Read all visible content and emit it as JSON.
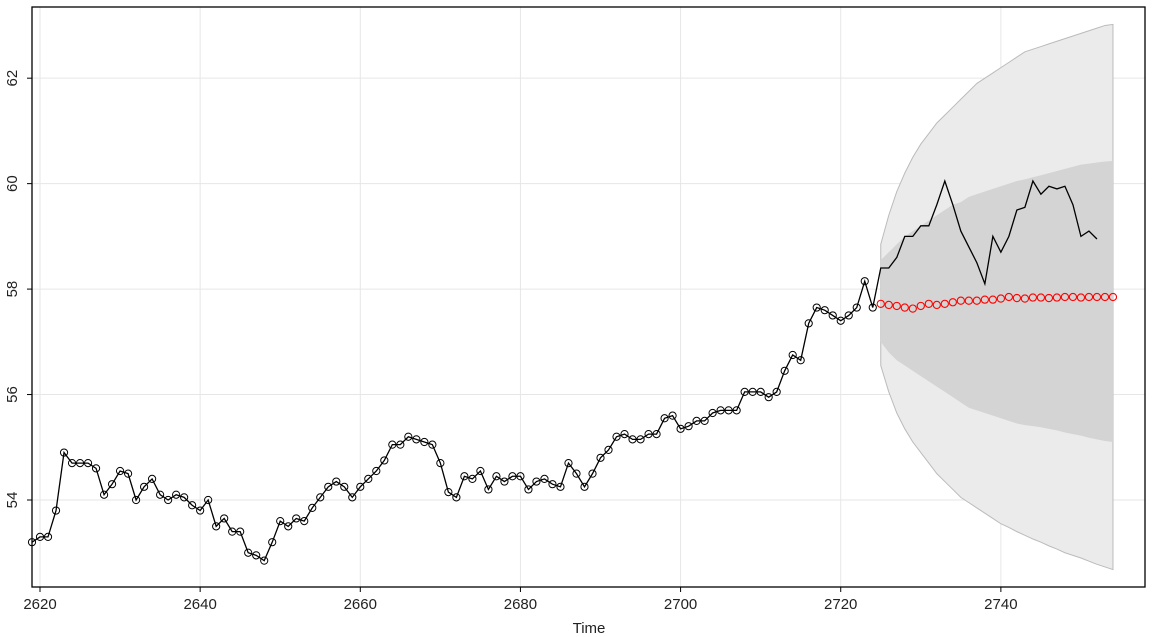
{
  "chart_data": {
    "type": "line",
    "title": "",
    "xlabel": "Time",
    "ylabel": "",
    "xlim": [
      2619,
      2758
    ],
    "ylim": [
      52.35,
      63.35
    ],
    "grid": true,
    "x_ticks": [
      2620,
      2640,
      2660,
      2680,
      2700,
      2720,
      2740
    ],
    "y_ticks": [
      54,
      56,
      58,
      60,
      62
    ],
    "colors": {
      "observed": "#000000",
      "forecast_points": "#ff0000",
      "band_80": "#d4d4d4",
      "band_95": "#ebebeb",
      "band_edge": "#bbbbbb",
      "grid": "#e6e6e6"
    },
    "observed": {
      "x_start": 2619,
      "values": [
        53.2,
        53.3,
        53.3,
        53.8,
        54.9,
        54.7,
        54.7,
        54.7,
        54.6,
        54.1,
        54.3,
        54.55,
        54.5,
        54.0,
        54.25,
        54.4,
        54.1,
        54.0,
        54.1,
        54.05,
        53.9,
        53.8,
        54.0,
        53.5,
        53.65,
        53.4,
        53.4,
        53.0,
        52.95,
        52.85,
        53.2,
        53.6,
        53.5,
        53.65,
        53.6,
        53.85,
        54.05,
        54.25,
        54.35,
        54.25,
        54.05,
        54.25,
        54.4,
        54.55,
        54.75,
        55.05,
        55.05,
        55.2,
        55.15,
        55.1,
        55.05,
        54.7,
        54.15,
        54.05,
        54.45,
        54.4,
        54.55,
        54.2,
        54.45,
        54.35,
        54.45,
        54.45,
        54.2,
        54.35,
        54.4,
        54.3,
        54.25,
        54.7,
        54.5,
        54.25,
        54.5,
        54.8,
        54.95,
        55.2,
        55.25,
        55.15,
        55.15,
        55.25,
        55.25,
        55.55,
        55.6,
        55.35,
        55.4,
        55.5,
        55.5,
        55.65,
        55.7,
        55.7,
        55.7,
        56.05,
        56.05,
        56.05,
        55.95,
        56.05,
        56.45,
        56.75,
        56.65,
        57.35,
        57.65,
        57.6,
        57.5,
        57.4,
        57.5,
        57.65,
        58.15,
        57.65
      ]
    },
    "actual_future": {
      "x_start": 2724,
      "values": [
        57.65,
        58.4,
        58.4,
        58.6,
        59.0,
        59.0,
        59.2,
        59.2,
        59.6,
        60.05,
        59.6,
        59.1,
        58.8,
        58.5,
        58.1,
        59.0,
        58.7,
        59.0,
        59.5,
        59.55,
        60.05,
        59.8,
        59.95,
        59.9,
        59.95,
        59.6,
        59.0,
        59.1,
        58.95
      ]
    },
    "forecast": {
      "x_start": 2725,
      "values": [
        57.72,
        57.7,
        57.68,
        57.65,
        57.63,
        57.68,
        57.72,
        57.7,
        57.72,
        57.75,
        57.78,
        57.78,
        57.78,
        57.8,
        57.8,
        57.82,
        57.85,
        57.83,
        57.82,
        57.84,
        57.84,
        57.83,
        57.84,
        57.85,
        57.85,
        57.84,
        57.85,
        57.85,
        57.85,
        57.85
      ]
    },
    "interval_80": {
      "lower": [
        57.0,
        56.8,
        56.65,
        56.55,
        56.45,
        56.35,
        56.25,
        56.15,
        56.05,
        55.95,
        55.85,
        55.75,
        55.7,
        55.65,
        55.6,
        55.55,
        55.5,
        55.45,
        55.42,
        55.4,
        55.38,
        55.35,
        55.32,
        55.28,
        55.25,
        55.22,
        55.18,
        55.15,
        55.12,
        55.1
      ],
      "upper": [
        58.55,
        58.7,
        58.85,
        59.0,
        59.1,
        59.2,
        59.3,
        59.4,
        59.5,
        59.6,
        59.65,
        59.75,
        59.8,
        59.85,
        59.9,
        59.95,
        60.0,
        60.05,
        60.08,
        60.12,
        60.16,
        60.2,
        60.24,
        60.28,
        60.32,
        60.36,
        60.38,
        60.4,
        60.42,
        60.43
      ]
    },
    "interval_95": {
      "lower": [
        56.55,
        56.05,
        55.65,
        55.35,
        55.1,
        54.9,
        54.7,
        54.5,
        54.35,
        54.2,
        54.05,
        53.95,
        53.85,
        53.75,
        53.65,
        53.55,
        53.48,
        53.4,
        53.33,
        53.26,
        53.2,
        53.13,
        53.07,
        53.0,
        52.95,
        52.9,
        52.84,
        52.78,
        52.73,
        52.68
      ],
      "upper": [
        58.85,
        59.4,
        59.85,
        60.2,
        60.5,
        60.75,
        60.95,
        61.15,
        61.3,
        61.45,
        61.6,
        61.75,
        61.9,
        62.0,
        62.1,
        62.2,
        62.3,
        62.4,
        62.5,
        62.55,
        62.6,
        62.65,
        62.7,
        62.75,
        62.8,
        62.85,
        62.9,
        62.95,
        63.0,
        63.02
      ]
    }
  }
}
